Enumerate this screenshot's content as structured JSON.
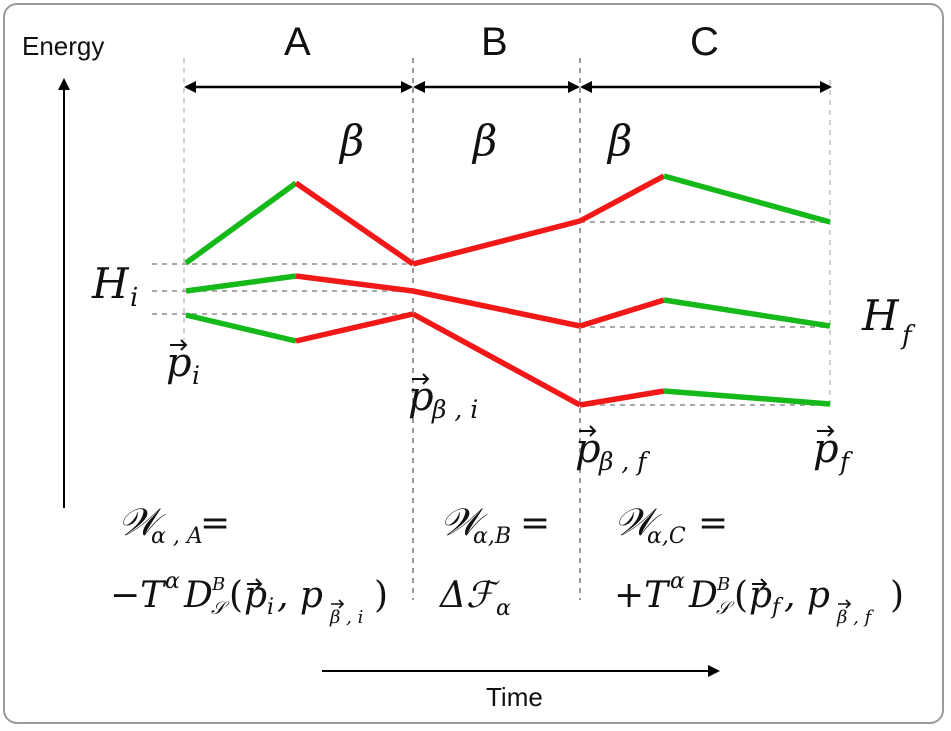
{
  "axes": {
    "y_label": "Energy",
    "x_label": "Time"
  },
  "phases": [
    {
      "label": "A",
      "beta": "β"
    },
    {
      "label": "B",
      "beta": "β"
    },
    {
      "label": "C",
      "beta": "β"
    }
  ],
  "hamiltonians": {
    "initial": {
      "symbol": "H",
      "sub": "i"
    },
    "final": {
      "symbol": "H",
      "sub": "f"
    }
  },
  "states": {
    "p_i": {
      "symbol": "p",
      "sub": "i"
    },
    "p_beta_i": {
      "symbol": "p",
      "sub": "β , i"
    },
    "p_beta_f": {
      "symbol": "p",
      "sub": "β , f"
    },
    "p_f": {
      "symbol": "p",
      "sub": "f"
    }
  },
  "work": {
    "A": {
      "w": "𝒲",
      "sub": "α , A",
      "eq": " =",
      "line2": "−T",
      "sup_alpha": "α",
      "D": "D",
      "D_sup": "B",
      "D_sub": "𝒮",
      "args_open": "(",
      "arg1": "p",
      "arg1_sub": "i",
      "comma": ", p",
      "arg2_sub": "β , i",
      "args_close": ")"
    },
    "B": {
      "w": "𝒲",
      "sub": "α,B",
      "eq": " =",
      "line2": "Δℱ",
      "line2_sub": "α"
    },
    "C": {
      "w": "𝒲",
      "sub": "α,C",
      "eq": " =",
      "line2": "+T",
      "sup_alpha": "α",
      "D": "D",
      "D_sup": "B",
      "D_sub": "𝒮",
      "args_open": "(",
      "arg1": "p",
      "arg1_sub": "f",
      "comma": ", p",
      "arg2_sub": "β , f",
      "args_close": ")"
    }
  },
  "colors": {
    "green": "#16b91a",
    "red": "#f21818",
    "dashed": "#a9a9a9",
    "border": "#9a9a9a"
  }
}
